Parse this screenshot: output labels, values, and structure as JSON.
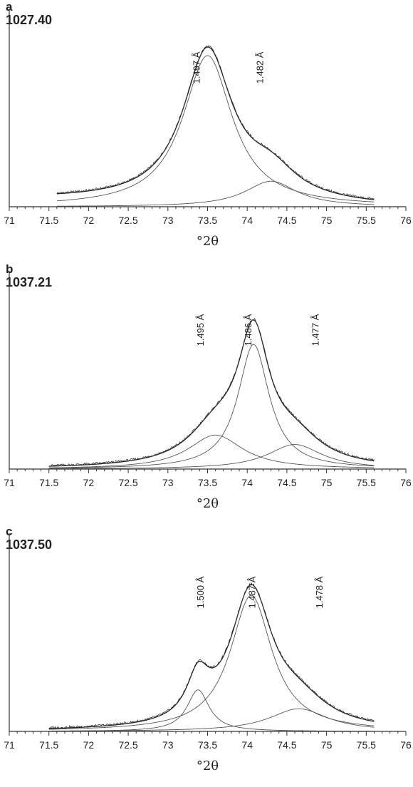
{
  "chart_data": [
    {
      "type": "line",
      "panel_letter": "a",
      "panel_value": "1027.40",
      "xlabel": "°2θ",
      "xlim": [
        71,
        76
      ],
      "x_ticks": [
        "71",
        "71.5",
        "72",
        "72.5",
        "73",
        "73.5",
        "74",
        "74.5",
        "75",
        "75.5",
        "76"
      ],
      "grid": false,
      "data_start": 71.6,
      "data_end": 75.6,
      "background": 0.035,
      "series": [
        {
          "role": "observed",
          "center": 73.5,
          "height": 0.8,
          "width": 0.38
        },
        {
          "role": "component",
          "center": 74.3,
          "height": 0.135,
          "width": 0.4
        }
      ],
      "annotations": [
        {
          "text": "1.497 Å",
          "x": 73.4
        },
        {
          "text": "1.482 Å",
          "x": 74.2
        }
      ]
    },
    {
      "type": "line",
      "panel_letter": "b",
      "panel_value": "1037.21",
      "xlabel": "°2θ",
      "xlim": [
        71,
        76
      ],
      "x_ticks": [
        "71",
        "71.5",
        "72",
        "72.5",
        "73",
        "73.5",
        "74",
        "74.5",
        "75",
        "75.5",
        "76"
      ],
      "grid": false,
      "data_start": 71.5,
      "data_end": 75.6,
      "background": 0.0,
      "series": [
        {
          "role": "component",
          "center": 73.6,
          "height": 0.18,
          "width": 0.42
        },
        {
          "role": "component",
          "center": 74.08,
          "height": 0.66,
          "width": 0.24
        },
        {
          "role": "component",
          "center": 74.6,
          "height": 0.13,
          "width": 0.42
        }
      ],
      "annotations": [
        {
          "text": "1.495 Å",
          "x": 73.45
        },
        {
          "text": "1.486 Å",
          "x": 74.05
        },
        {
          "text": "1.477 Å",
          "x": 74.9
        }
      ]
    },
    {
      "type": "line",
      "panel_letter": "c",
      "panel_value": "1037.50",
      "xlabel": "°2θ",
      "xlim": [
        71,
        76
      ],
      "x_ticks": [
        "71",
        "71.5",
        "72",
        "72.5",
        "73",
        "73.5",
        "74",
        "74.5",
        "75",
        "75.5",
        "76"
      ],
      "grid": false,
      "data_start": 71.5,
      "data_end": 75.6,
      "background": 0.0,
      "series": [
        {
          "role": "component",
          "center": 73.38,
          "height": 0.22,
          "width": 0.17
        },
        {
          "role": "component",
          "center": 74.05,
          "height": 0.72,
          "width": 0.32
        },
        {
          "role": "component",
          "center": 74.65,
          "height": 0.12,
          "width": 0.45
        }
      ],
      "annotations": [
        {
          "text": "1.500 Å",
          "x": 73.45
        },
        {
          "text": "1.487 Å",
          "x": 74.1
        },
        {
          "text": "1.478 Å",
          "x": 74.95
        }
      ]
    }
  ]
}
